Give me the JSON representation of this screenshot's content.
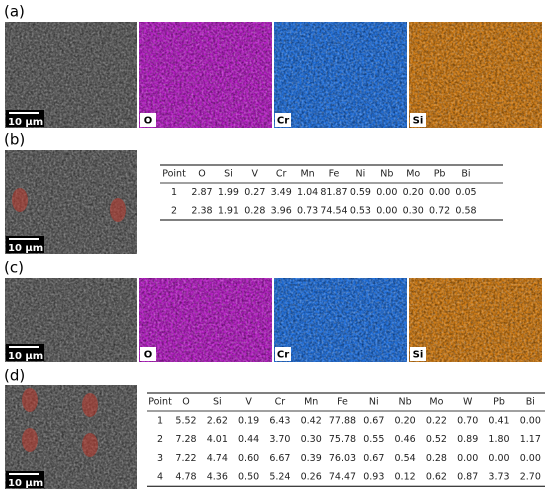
{
  "panels": [
    {
      "label": "(a)",
      "scale_bar": "10 μm",
      "maps": [
        "O",
        "Cr",
        "Si"
      ]
    },
    {
      "label": "(b)",
      "scale_bar": "10 μm",
      "table": {
        "header": [
          "Point",
          "O",
          "Si",
          "V",
          "Cr",
          "Mn",
          "Fe",
          "Ni",
          "Nb",
          "Mo",
          "Pb",
          "Bi"
        ],
        "rows": [
          [
            "1",
            "2.87",
            "1.99",
            "0.27",
            "3.49",
            "1.04",
            "81.87",
            "0.59",
            "0.00",
            "0.20",
            "0.00",
            "0.05"
          ],
          [
            "2",
            "2.38",
            "1.91",
            "0.28",
            "3.96",
            "0.73",
            "74.54",
            "0.53",
            "0.00",
            "0.30",
            "0.72",
            "0.58"
          ]
        ]
      }
    },
    {
      "label": "(c)",
      "scale_bar": "10 μm",
      "maps": [
        "O",
        "Cr",
        "Si"
      ]
    },
    {
      "label": "(d)",
      "scale_bar": "10 μm",
      "table": {
        "header": [
          "Point",
          "O",
          "Si",
          "V",
          "Cr",
          "Mn",
          "Fe",
          "Ni",
          "Nb",
          "Mo",
          "W",
          "Pb",
          "Bi"
        ],
        "rows": [
          [
            "1",
            "5.52",
            "2.62",
            "0.19",
            "6.43",
            "0.42",
            "77.88",
            "0.67",
            "0.20",
            "0.22",
            "0.70",
            "0.41",
            "0.00"
          ],
          [
            "2",
            "7.28",
            "4.01",
            "0.44",
            "3.70",
            "0.30",
            "75.78",
            "0.55",
            "0.46",
            "0.52",
            "0.89",
            "1.80",
            "1.17"
          ],
          [
            "3",
            "7.22",
            "4.74",
            "0.60",
            "6.67",
            "0.39",
            "76.03",
            "0.67",
            "0.54",
            "0.28",
            "0.00",
            "0.00",
            "0.00"
          ],
          [
            "4",
            "4.78",
            "4.36",
            "0.50",
            "5.24",
            "0.26",
            "74.47",
            "0.93",
            "0.12",
            "0.62",
            "0.87",
            "3.73",
            "2.70"
          ]
        ]
      }
    }
  ]
}
